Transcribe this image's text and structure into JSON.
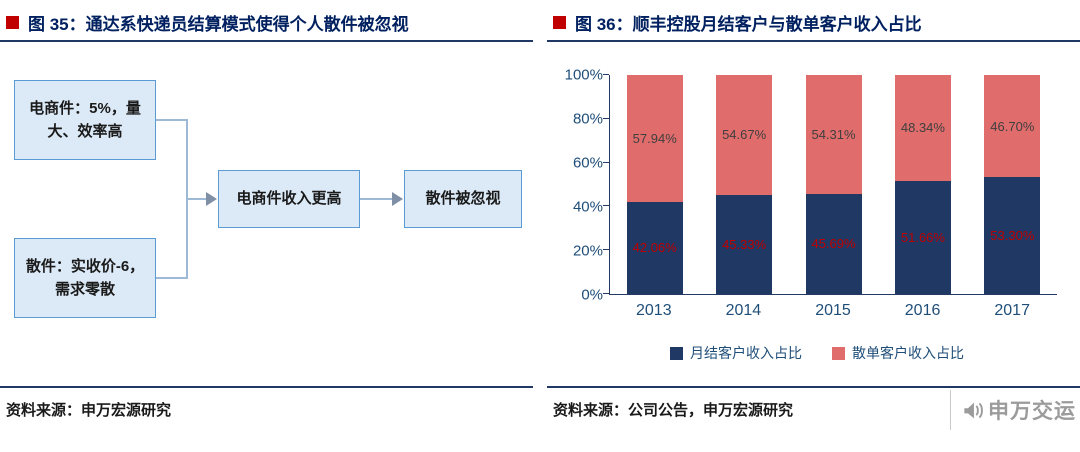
{
  "colors": {
    "title_navy": "#002060",
    "rule_navy": "#1F3864",
    "bullet_red": "#C00000",
    "box_fill": "#DCEAF7",
    "box_border": "#5B9BD5",
    "connector": "#9DB9D5",
    "watermark_gray": "#9b9b9b"
  },
  "figure_left": {
    "title": "图 35：通达系快递员结算模式使得个人散件被忽视",
    "boxes": {
      "ecommerce": "电商件：5%，量大、效率高",
      "scattered": "散件：实收价-6，需求零散",
      "income": "电商件收入更高",
      "ignored": "散件被忽视"
    },
    "source": "资料来源：申万宏源研究"
  },
  "figure_right": {
    "title": "图 36：顺丰控股月结客户与散单客户收入占比",
    "source": "资料来源：公司公告，申万宏源研究",
    "watermark": "申万交运"
  },
  "chart_data": {
    "type": "bar",
    "stacked": true,
    "title": "顺丰控股月结客户与散单客户收入占比",
    "categories": [
      "2013",
      "2014",
      "2015",
      "2016",
      "2017"
    ],
    "series": [
      {
        "name": "月结客户收入占比",
        "color": "#1F3864",
        "label_color": "#C00000",
        "values": [
          42.06,
          45.33,
          45.69,
          51.66,
          53.3
        ]
      },
      {
        "name": "散单客户收入占比",
        "color": "#E06C6C",
        "label_color": "#3f3f3f",
        "values": [
          57.94,
          54.67,
          54.31,
          48.34,
          46.7
        ]
      }
    ],
    "ylim": [
      0,
      100
    ],
    "yticks": [
      "0%",
      "20%",
      "40%",
      "60%",
      "80%",
      "100%"
    ],
    "grid": false,
    "legend_position": "bottom"
  }
}
